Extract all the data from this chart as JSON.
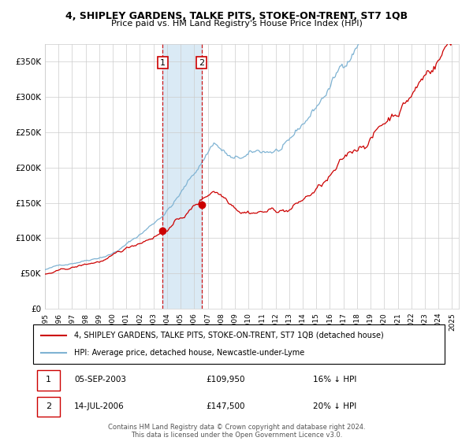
{
  "title": "4, SHIPLEY GARDENS, TALKE PITS, STOKE-ON-TRENT, ST7 1QB",
  "subtitle": "Price paid vs. HM Land Registry's House Price Index (HPI)",
  "sale1_date_num": 2003.67,
  "sale1_price": 109950,
  "sale1_label": "05-SEP-2003",
  "sale1_price_str": "£109,950",
  "sale1_pct": "16% ↓ HPI",
  "sale2_date_num": 2006.54,
  "sale2_price": 147500,
  "sale2_label": "14-JUL-2006",
  "sale2_price_str": "£147,500",
  "sale2_pct": "20% ↓ HPI",
  "legend_red": "4, SHIPLEY GARDENS, TALKE PITS, STOKE-ON-TRENT, ST7 1QB (detached house)",
  "legend_blue": "HPI: Average price, detached house, Newcastle-under-Lyme",
  "footer": "Contains HM Land Registry data © Crown copyright and database right 2024.\nThis data is licensed under the Open Government Licence v3.0.",
  "xlim": [
    1995.0,
    2025.5
  ],
  "ylim": [
    0,
    375000
  ],
  "yticks": [
    0,
    50000,
    100000,
    150000,
    200000,
    250000,
    300000,
    350000
  ],
  "ytick_labels": [
    "£0",
    "£50K",
    "£100K",
    "£150K",
    "£200K",
    "£250K",
    "£300K",
    "£350K"
  ],
  "red_color": "#cc0000",
  "blue_color": "#7fb3d3",
  "shade_color": "#daeaf5",
  "grid_color": "#cccccc",
  "bg_color": "#ffffff"
}
